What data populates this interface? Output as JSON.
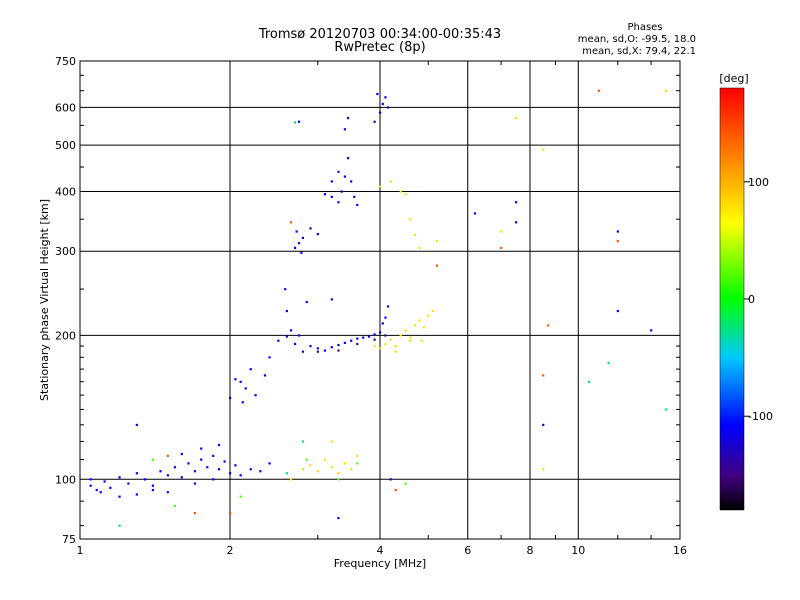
{
  "chart_data": {
    "type": "scatter",
    "title": "Tromsø 20120703 00:34:00-00:35:43",
    "subtitle": "RwPretec (8p)",
    "xlabel": "Frequency [MHz]",
    "ylabel": "Stationary phase Virtual Height [km]",
    "x_scale": "log",
    "y_scale": "log",
    "xlim": [
      1,
      16
    ],
    "ylim": [
      75,
      750
    ],
    "x_ticks": [
      1,
      2,
      4,
      6,
      8,
      10,
      16
    ],
    "y_ticks": [
      75,
      100,
      200,
      300,
      400,
      500,
      600,
      750
    ],
    "grid": true,
    "phase_stats": {
      "header": "Phases",
      "line_o": "mean, sd,O: -99.5, 18.0",
      "line_x": "mean, sd,X:  79.4, 22.1"
    },
    "colorbar": {
      "label": "[deg]",
      "ticks": [
        "100",
        "0",
        "-100"
      ],
      "tick_values": [
        100,
        0,
        -100
      ],
      "range": [
        -180,
        180
      ]
    },
    "series": [
      {
        "phase_deg": -100,
        "points": [
          [
            1.05,
            97
          ],
          [
            1.08,
            95
          ],
          [
            1.12,
            99
          ],
          [
            1.15,
            96
          ],
          [
            1.2,
            101
          ],
          [
            1.25,
            98
          ],
          [
            1.3,
            103
          ],
          [
            1.35,
            100
          ],
          [
            1.4,
            97
          ],
          [
            1.45,
            104
          ],
          [
            1.5,
            102
          ],
          [
            1.55,
            106
          ],
          [
            1.6,
            101
          ],
          [
            1.65,
            108
          ],
          [
            1.7,
            104
          ],
          [
            1.75,
            110
          ],
          [
            1.8,
            106
          ],
          [
            1.85,
            112
          ],
          [
            1.9,
            105
          ],
          [
            1.95,
            109
          ],
          [
            2.0,
            103
          ],
          [
            2.05,
            107
          ],
          [
            2.1,
            102
          ],
          [
            2.2,
            105
          ],
          [
            2.3,
            104
          ],
          [
            2.4,
            108
          ],
          [
            1.6,
            113
          ],
          [
            1.75,
            116
          ],
          [
            1.9,
            118
          ],
          [
            1.7,
            98
          ],
          [
            1.5,
            94
          ],
          [
            1.3,
            93
          ],
          [
            1.1,
            94
          ],
          [
            1.2,
            92
          ],
          [
            1.4,
            95
          ],
          [
            1.85,
            100
          ],
          [
            2.0,
            148
          ],
          [
            2.05,
            162
          ],
          [
            2.1,
            160
          ],
          [
            2.15,
            155
          ],
          [
            2.2,
            170
          ],
          [
            2.25,
            150
          ],
          [
            2.12,
            145
          ],
          [
            2.35,
            165
          ],
          [
            2.4,
            180
          ],
          [
            2.5,
            195
          ],
          [
            2.6,
            199
          ],
          [
            2.65,
            205
          ],
          [
            2.7,
            192
          ],
          [
            2.75,
            200
          ],
          [
            2.6,
            225
          ],
          [
            2.58,
            250
          ],
          [
            2.8,
            185
          ],
          [
            2.9,
            190
          ],
          [
            3.0,
            188
          ],
          [
            3.1,
            186
          ],
          [
            3.2,
            189
          ],
          [
            3.3,
            191
          ],
          [
            3.4,
            193
          ],
          [
            3.5,
            195
          ],
          [
            3.6,
            197
          ],
          [
            3.7,
            198
          ],
          [
            3.8,
            199
          ],
          [
            3.9,
            201
          ],
          [
            4.0,
            203
          ],
          [
            4.05,
            212
          ],
          [
            4.1,
            218
          ],
          [
            4.15,
            230
          ],
          [
            3.2,
            238
          ],
          [
            2.85,
            235
          ],
          [
            2.7,
            305
          ],
          [
            2.75,
            312
          ],
          [
            2.8,
            320
          ],
          [
            2.72,
            330
          ],
          [
            2.78,
            298
          ],
          [
            2.9,
            335
          ],
          [
            3.0,
            326
          ],
          [
            3.1,
            395
          ],
          [
            3.2,
            390
          ],
          [
            3.3,
            380
          ],
          [
            3.35,
            400
          ],
          [
            3.4,
            430
          ],
          [
            3.45,
            470
          ],
          [
            3.5,
            420
          ],
          [
            3.55,
            390
          ],
          [
            3.6,
            375
          ],
          [
            3.2,
            420
          ],
          [
            3.3,
            440
          ],
          [
            3.4,
            540
          ],
          [
            3.45,
            570
          ],
          [
            3.9,
            560
          ],
          [
            4.0,
            585
          ],
          [
            4.05,
            610
          ],
          [
            4.1,
            630
          ],
          [
            4.15,
            600
          ],
          [
            3.95,
            640
          ],
          [
            2.75,
            560
          ],
          [
            12.0,
            330
          ],
          [
            12.0,
            225
          ],
          [
            14.0,
            205
          ],
          [
            8.5,
            130
          ],
          [
            7.5,
            380
          ],
          [
            7.5,
            345
          ],
          [
            6.2,
            360
          ],
          [
            4.2,
            100
          ],
          [
            3.3,
            83
          ],
          [
            1.3,
            130
          ],
          [
            1.05,
            100
          ]
        ]
      },
      {
        "phase_deg": -150,
        "points": [
          [
            3.0,
            185
          ],
          [
            3.3,
            186
          ],
          [
            3.6,
            192
          ],
          [
            3.9,
            196
          ],
          [
            4.1,
            200
          ]
        ]
      },
      {
        "phase_deg": -20,
        "points": [
          [
            2.7,
            558
          ],
          [
            1.2,
            80
          ],
          [
            11.5,
            175
          ],
          [
            10.5,
            160
          ],
          [
            15.0,
            140
          ],
          [
            2.6,
            103
          ],
          [
            2.8,
            120
          ]
        ]
      },
      {
        "phase_deg": 20,
        "points": [
          [
            1.4,
            110
          ],
          [
            1.55,
            88
          ],
          [
            2.1,
            92
          ],
          [
            2.85,
            110
          ],
          [
            3.3,
            100
          ],
          [
            3.6,
            108
          ],
          [
            4.5,
            98
          ]
        ]
      },
      {
        "phase_deg": 80,
        "points": [
          [
            2.8,
            105
          ],
          [
            2.9,
            107
          ],
          [
            3.0,
            104
          ],
          [
            3.1,
            110
          ],
          [
            3.2,
            106
          ],
          [
            3.3,
            103
          ],
          [
            3.4,
            108
          ],
          [
            3.5,
            105
          ],
          [
            3.6,
            112
          ],
          [
            4.0,
            188
          ],
          [
            4.1,
            192
          ],
          [
            4.2,
            196
          ],
          [
            4.3,
            190
          ],
          [
            4.4,
            200
          ],
          [
            4.5,
            205
          ],
          [
            4.6,
            198
          ],
          [
            4.7,
            210
          ],
          [
            4.8,
            215
          ],
          [
            4.9,
            208
          ],
          [
            5.0,
            220
          ],
          [
            5.1,
            225
          ],
          [
            4.85,
            195
          ],
          [
            4.3,
            185
          ],
          [
            3.9,
            190
          ],
          [
            4.0,
            410
          ],
          [
            4.2,
            420
          ],
          [
            4.4,
            400
          ],
          [
            4.5,
            395
          ],
          [
            4.6,
            350
          ],
          [
            4.7,
            325
          ],
          [
            4.8,
            305
          ],
          [
            5.2,
            315
          ],
          [
            7.5,
            570
          ],
          [
            8.5,
            490
          ],
          [
            15.0,
            650
          ],
          [
            7.0,
            330
          ],
          [
            8.5,
            105
          ],
          [
            4.6,
            195
          ],
          [
            3.2,
            120
          ],
          [
            2.65,
            100
          ]
        ]
      },
      {
        "phase_deg": 140,
        "points": [
          [
            2.65,
            345
          ],
          [
            2.0,
            85
          ],
          [
            1.5,
            112
          ],
          [
            4.3,
            95
          ],
          [
            12.0,
            315
          ],
          [
            8.7,
            210
          ],
          [
            8.5,
            165
          ],
          [
            11.0,
            650
          ],
          [
            5.2,
            280
          ],
          [
            7.0,
            305
          ],
          [
            1.7,
            85
          ]
        ]
      }
    ]
  }
}
